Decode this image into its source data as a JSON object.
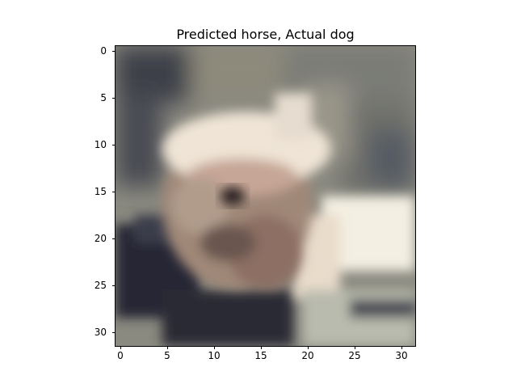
{
  "title": "Predicted horse, Actual dog",
  "axes": {
    "x_ticks": [
      "0",
      "5",
      "10",
      "15",
      "20",
      "25",
      "30"
    ],
    "y_ticks": [
      "0",
      "5",
      "10",
      "15",
      "20",
      "25",
      "30"
    ]
  },
  "colors": {
    "background": "#ffffff",
    "axis": "#000000",
    "dark_shadow": "#262834",
    "dog_fur_light": "#efe4d6",
    "floor_light": "#f3efe2",
    "carpet": "#8b8a80"
  }
}
